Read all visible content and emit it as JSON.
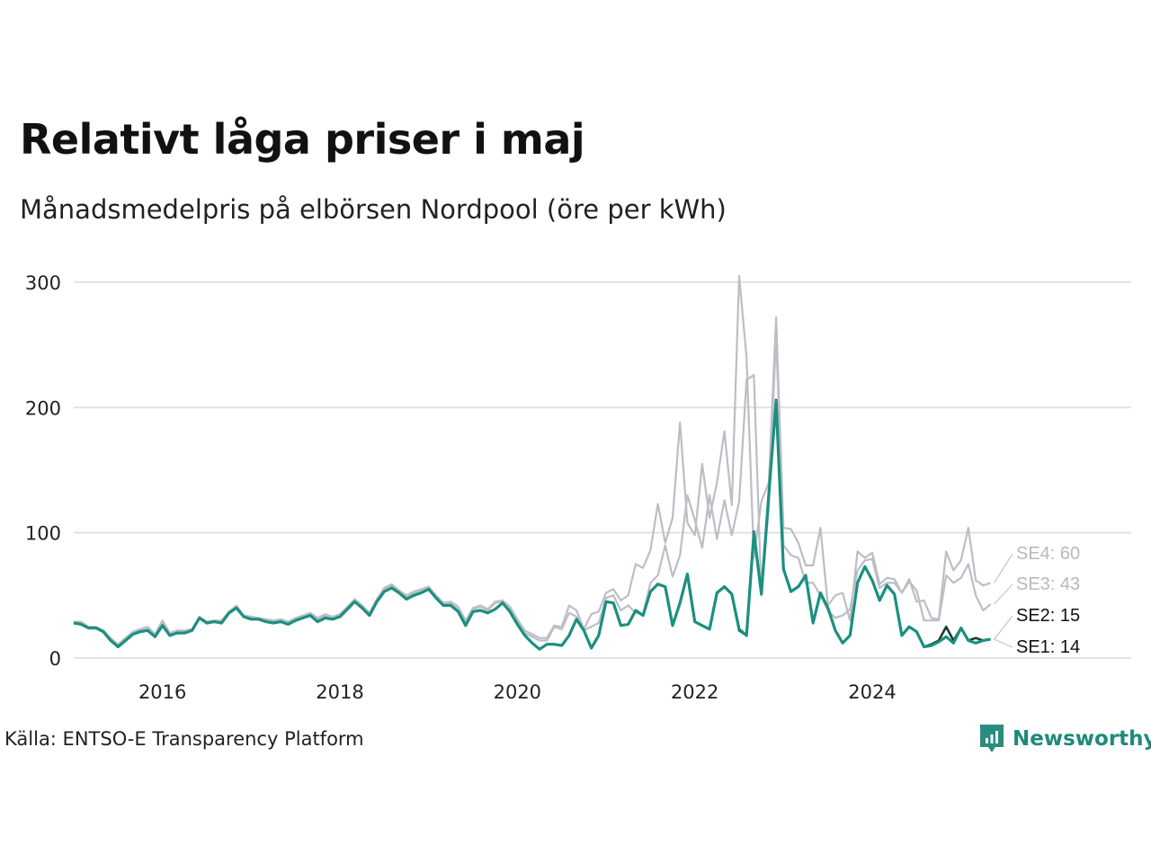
{
  "title": "Relativt låga priser i maj",
  "subtitle": "Månadsmedelpris på elbörsen Nordpool (öre per kWh)",
  "source": "Källa: ENTSO-E Transparency Platform",
  "brand": "Newsworthy",
  "colors": {
    "se1": "#1a9080",
    "se2": "#1c3a30",
    "se3": "#bdbdc6",
    "se4": "#bdbdc6",
    "grid": "#e2e2e2",
    "brand": "#1f8a7a"
  },
  "chart_data": {
    "type": "line",
    "title": "Relativt låga priser i maj",
    "subtitle": "Månadsmedelpris på elbörsen Nordpool (öre per kWh)",
    "xlabel": "",
    "ylabel": "",
    "xlim": [
      2015.0,
      2025.5
    ],
    "ylim": [
      0,
      310
    ],
    "x_ticks": [
      2016,
      2018,
      2020,
      2022,
      2024
    ],
    "x_tick_labels": [
      "2016",
      "2018",
      "2020",
      "2022",
      "2024"
    ],
    "y_ticks": [
      0,
      100,
      200,
      300
    ],
    "y_tick_labels": [
      "0",
      "100",
      "200",
      "300"
    ],
    "grid": true,
    "legend": "end-labels-right",
    "series": [
      {
        "name": "SE1",
        "end_label": "SE1: 14",
        "x_start": "2015-01",
        "values": [
          28,
          27,
          24,
          24,
          21,
          14,
          9,
          14,
          19,
          21,
          22,
          17,
          26,
          18,
          20,
          20,
          22,
          32,
          28,
          29,
          28,
          36,
          40,
          33,
          31,
          31,
          29,
          28,
          29,
          27,
          30,
          32,
          34,
          29,
          32,
          31,
          33,
          39,
          45,
          40,
          34,
          45,
          53,
          56,
          52,
          47,
          50,
          52,
          55,
          48,
          42,
          42,
          37,
          26,
          37,
          38,
          36,
          39,
          44,
          37,
          27,
          18,
          12,
          7,
          11,
          11,
          10,
          18,
          31,
          22,
          8,
          18,
          45,
          44,
          26,
          27,
          38,
          34,
          53,
          59,
          57,
          26,
          44,
          67,
          29,
          26,
          23,
          52,
          57,
          51,
          23,
          18,
          100,
          51,
          130,
          205,
          71,
          53,
          57,
          66,
          28,
          52,
          40,
          22,
          12,
          18,
          60,
          73,
          62,
          46,
          58,
          51,
          18,
          25,
          21,
          9,
          10,
          13,
          17,
          12,
          24,
          14,
          12,
          14,
          15
        ]
      },
      {
        "name": "SE2",
        "end_label": "SE2: 15",
        "x_start": "2015-01",
        "values": [
          28,
          27,
          24,
          24,
          21,
          14,
          9,
          14,
          19,
          21,
          22,
          17,
          26,
          18,
          20,
          20,
          22,
          32,
          28,
          29,
          28,
          36,
          40,
          33,
          31,
          31,
          29,
          28,
          29,
          27,
          30,
          32,
          34,
          29,
          32,
          31,
          33,
          39,
          45,
          40,
          34,
          45,
          53,
          56,
          52,
          47,
          50,
          52,
          55,
          48,
          42,
          42,
          37,
          26,
          37,
          38,
          36,
          39,
          44,
          37,
          27,
          18,
          12,
          7,
          11,
          11,
          10,
          18,
          31,
          22,
          8,
          18,
          45,
          44,
          26,
          27,
          38,
          34,
          53,
          59,
          57,
          26,
          44,
          67,
          29,
          26,
          23,
          52,
          57,
          51,
          22,
          18,
          101,
          51,
          130,
          206,
          71,
          53,
          57,
          66,
          28,
          52,
          40,
          22,
          12,
          18,
          60,
          73,
          62,
          46,
          58,
          51,
          18,
          25,
          21,
          9,
          11,
          14,
          25,
          14,
          24,
          14,
          16,
          14,
          15
        ]
      },
      {
        "name": "SE3",
        "end_label": "SE3: 43",
        "x_start": "2015-01",
        "values": [
          29,
          28,
          24,
          24,
          21,
          15,
          10,
          15,
          20,
          22,
          24,
          18,
          29,
          19,
          21,
          21,
          22,
          32,
          28,
          29,
          29,
          36,
          41,
          33,
          32,
          31,
          30,
          29,
          30,
          28,
          31,
          33,
          35,
          31,
          34,
          32,
          33,
          40,
          46,
          41,
          35,
          46,
          55,
          58,
          53,
          49,
          52,
          54,
          56,
          49,
          43,
          44,
          39,
          28,
          39,
          41,
          38,
          44,
          45,
          39,
          29,
          20,
          17,
          14,
          14,
          25,
          23,
          36,
          33,
          22,
          25,
          28,
          48,
          50,
          38,
          42,
          36,
          35,
          60,
          66,
          90,
          65,
          82,
          130,
          110,
          88,
          130,
          95,
          126,
          98,
          125,
          222,
          226,
          50,
          120,
          258,
          90,
          82,
          80,
          60,
          60,
          50,
          38,
          32,
          34,
          39,
          70,
          78,
          79,
          56,
          60,
          60,
          52,
          61,
          54,
          30,
          30,
          30,
          66,
          60,
          64,
          75,
          50,
          38,
          43
        ]
      },
      {
        "name": "SE4",
        "end_label": "SE4: 60",
        "x_start": "2015-01",
        "values": [
          29,
          29,
          25,
          25,
          22,
          16,
          11,
          16,
          21,
          23,
          25,
          19,
          30,
          20,
          22,
          22,
          23,
          33,
          29,
          30,
          30,
          37,
          42,
          34,
          33,
          32,
          31,
          30,
          31,
          29,
          32,
          34,
          36,
          32,
          35,
          33,
          35,
          41,
          47,
          42,
          36,
          47,
          56,
          59,
          54,
          50,
          53,
          55,
          57,
          50,
          44,
          45,
          41,
          30,
          40,
          42,
          39,
          45,
          46,
          41,
          31,
          22,
          19,
          16,
          16,
          26,
          25,
          42,
          38,
          23,
          35,
          37,
          52,
          55,
          46,
          50,
          75,
          72,
          86,
          123,
          92,
          112,
          188,
          108,
          98,
          155,
          112,
          140,
          181,
          122,
          305,
          240,
          80,
          125,
          140,
          272,
          104,
          103,
          92,
          74,
          74,
          104,
          42,
          50,
          52,
          30,
          85,
          80,
          84,
          59,
          64,
          63,
          52,
          63,
          45,
          46,
          32,
          31,
          85,
          70,
          78,
          104,
          62,
          58,
          60
        ]
      }
    ]
  }
}
